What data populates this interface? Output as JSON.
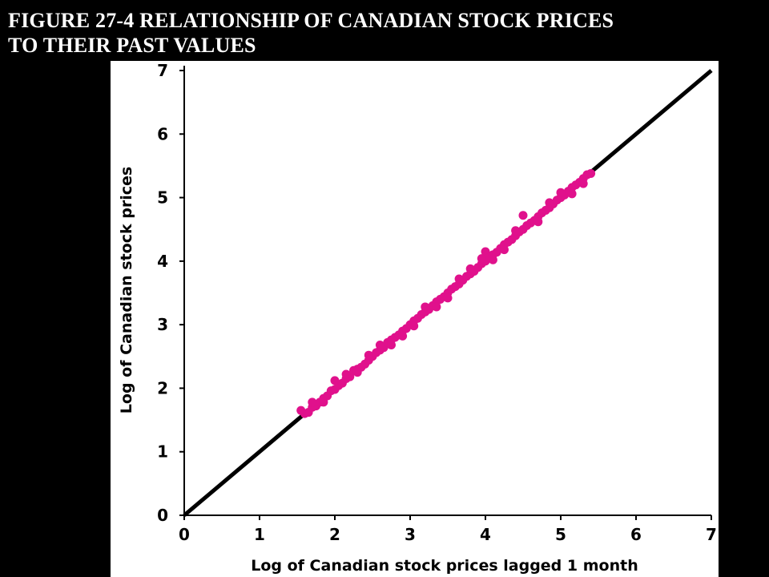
{
  "figure": {
    "title": "FIGURE 27-4  RELATIONSHIP OF CANADIAN STOCK PRICES\nTO THEIR PAST VALUES"
  },
  "colors": {
    "background": "#000000",
    "panel": "#ffffff",
    "points": "#e0118c",
    "line": "#000000"
  },
  "chart_data": {
    "type": "scatter",
    "title": "",
    "xlabel": "Log of Canadian stock prices lagged 1 month",
    "ylabel": "Log of Canadian stock prices",
    "xlim": [
      0,
      7
    ],
    "ylim": [
      0,
      7
    ],
    "xticks": [
      "0",
      "1",
      "2",
      "3",
      "4",
      "5",
      "6",
      "7"
    ],
    "yticks": [
      "0",
      "1",
      "2",
      "3",
      "4",
      "5",
      "6",
      "7"
    ],
    "grid": false,
    "legend": "none",
    "reference_line": {
      "label": "",
      "x": [
        0,
        7
      ],
      "y": [
        0,
        7
      ]
    },
    "series": [
      {
        "name": "",
        "points": [
          [
            1.55,
            1.65
          ],
          [
            1.6,
            1.6
          ],
          [
            1.65,
            1.62
          ],
          [
            1.7,
            1.7
          ],
          [
            1.75,
            1.72
          ],
          [
            1.8,
            1.78
          ],
          [
            1.85,
            1.84
          ],
          [
            1.9,
            1.88
          ],
          [
            1.95,
            1.96
          ],
          [
            2.0,
            1.98
          ],
          [
            2.05,
            2.04
          ],
          [
            2.1,
            2.08
          ],
          [
            2.15,
            2.15
          ],
          [
            2.2,
            2.18
          ],
          [
            2.25,
            2.28
          ],
          [
            2.3,
            2.3
          ],
          [
            2.35,
            2.33
          ],
          [
            2.4,
            2.38
          ],
          [
            2.45,
            2.44
          ],
          [
            2.5,
            2.5
          ],
          [
            2.55,
            2.56
          ],
          [
            2.6,
            2.6
          ],
          [
            2.65,
            2.64
          ],
          [
            2.7,
            2.72
          ],
          [
            2.75,
            2.76
          ],
          [
            2.8,
            2.8
          ],
          [
            2.85,
            2.84
          ],
          [
            2.9,
            2.9
          ],
          [
            2.95,
            2.94
          ],
          [
            3.0,
            3.0
          ],
          [
            3.05,
            3.06
          ],
          [
            3.1,
            3.1
          ],
          [
            3.15,
            3.16
          ],
          [
            3.2,
            3.2
          ],
          [
            3.25,
            3.24
          ],
          [
            3.3,
            3.3
          ],
          [
            3.35,
            3.36
          ],
          [
            3.4,
            3.4
          ],
          [
            3.45,
            3.44
          ],
          [
            3.5,
            3.5
          ],
          [
            3.55,
            3.56
          ],
          [
            3.6,
            3.6
          ],
          [
            3.65,
            3.64
          ],
          [
            3.7,
            3.7
          ],
          [
            3.75,
            3.76
          ],
          [
            3.8,
            3.8
          ],
          [
            3.85,
            3.84
          ],
          [
            3.9,
            3.9
          ],
          [
            3.95,
            3.96
          ],
          [
            4.0,
            4.0
          ],
          [
            4.0,
            4.15
          ],
          [
            4.05,
            4.06
          ],
          [
            4.1,
            4.1
          ],
          [
            4.15,
            4.14
          ],
          [
            4.2,
            4.2
          ],
          [
            4.25,
            4.26
          ],
          [
            4.3,
            4.3
          ],
          [
            4.35,
            4.34
          ],
          [
            4.4,
            4.4
          ],
          [
            4.45,
            4.46
          ],
          [
            4.5,
            4.5
          ],
          [
            4.5,
            4.72
          ],
          [
            4.55,
            4.56
          ],
          [
            4.6,
            4.6
          ],
          [
            4.65,
            4.64
          ],
          [
            4.7,
            4.7
          ],
          [
            4.75,
            4.76
          ],
          [
            4.8,
            4.8
          ],
          [
            4.85,
            4.84
          ],
          [
            4.9,
            4.9
          ],
          [
            4.95,
            4.96
          ],
          [
            5.0,
            5.0
          ],
          [
            5.05,
            5.04
          ],
          [
            5.1,
            5.1
          ],
          [
            5.15,
            5.16
          ],
          [
            5.2,
            5.2
          ],
          [
            5.25,
            5.24
          ],
          [
            5.3,
            5.3
          ],
          [
            5.35,
            5.36
          ],
          [
            5.4,
            5.38
          ],
          [
            1.7,
            1.78
          ],
          [
            2.0,
            2.12
          ],
          [
            2.3,
            2.25
          ],
          [
            2.6,
            2.68
          ],
          [
            2.9,
            2.82
          ],
          [
            3.2,
            3.28
          ],
          [
            3.5,
            3.42
          ],
          [
            3.8,
            3.88
          ],
          [
            4.1,
            4.02
          ],
          [
            4.4,
            4.48
          ],
          [
            4.7,
            4.62
          ],
          [
            5.0,
            5.08
          ],
          [
            5.3,
            5.22
          ],
          [
            2.45,
            2.52
          ],
          [
            2.75,
            2.68
          ],
          [
            3.35,
            3.28
          ],
          [
            3.65,
            3.72
          ],
          [
            4.25,
            4.18
          ],
          [
            4.85,
            4.92
          ],
          [
            5.15,
            5.06
          ],
          [
            1.85,
            1.78
          ],
          [
            2.15,
            2.22
          ],
          [
            3.05,
            2.98
          ],
          [
            3.95,
            4.04
          ]
        ]
      }
    ]
  }
}
